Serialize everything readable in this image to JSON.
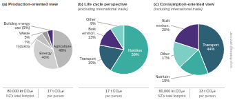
{
  "chart_data": [
    {
      "type": "pie",
      "title": "(a) Production-oriented view",
      "values": [
        48,
        40,
        7,
        5,
        5
      ],
      "value_labels": [
        "Agriculture\n48%",
        "Energy\n40%",
        "7%\nIndustry",
        "Waste\n5%",
        "Building energy\nuse (5%)"
      ],
      "colors": [
        "#b8b8b8",
        "#d0d0d0",
        "#c0c0c0",
        "#989898",
        "#4b2e7a"
      ],
      "annotations": [
        [
          "80,000 kt CO₂e",
          "NZ's total footprint"
        ],
        [
          "17 t CO₂e",
          "per person"
        ]
      ]
    },
    {
      "type": "pie",
      "title": "(b) Life cycle perspective",
      "subtitle": "(excluding international trade)",
      "values": [
        59,
        19,
        13,
        9
      ],
      "value_labels": [
        "Nutrition\n59%",
        "Transport\n19%",
        "Built\nenviron.\n13%",
        "Other\n9%"
      ],
      "colors": [
        "#3aada0",
        "#2d6074",
        "#4b2e7a",
        "#7dcfc5"
      ],
      "annotations": [
        [
          "17 t CO₂e",
          "per person"
        ]
      ]
    },
    {
      "type": "pie",
      "title": "(c) Consumption-oriented view",
      "subtitle": "(including international trade)",
      "values": [
        44,
        19,
        17,
        20
      ],
      "value_labels": [
        "Transport\n44%",
        "Nutrition\n19%",
        "Other\n17%",
        "Built\nenviron.\n20%"
      ],
      "colors": [
        "#2d6074",
        "#3aada0",
        "#7dcfc5",
        "#4b2e7a"
      ],
      "annotations": [
        [
          "60,000 kt CO₂e",
          "NZ's total footprint"
        ],
        [
          "13 t CO₂e",
          "per person"
        ]
      ]
    }
  ],
  "annotations": [
    "www.thinkstep-anz.com"
  ]
}
